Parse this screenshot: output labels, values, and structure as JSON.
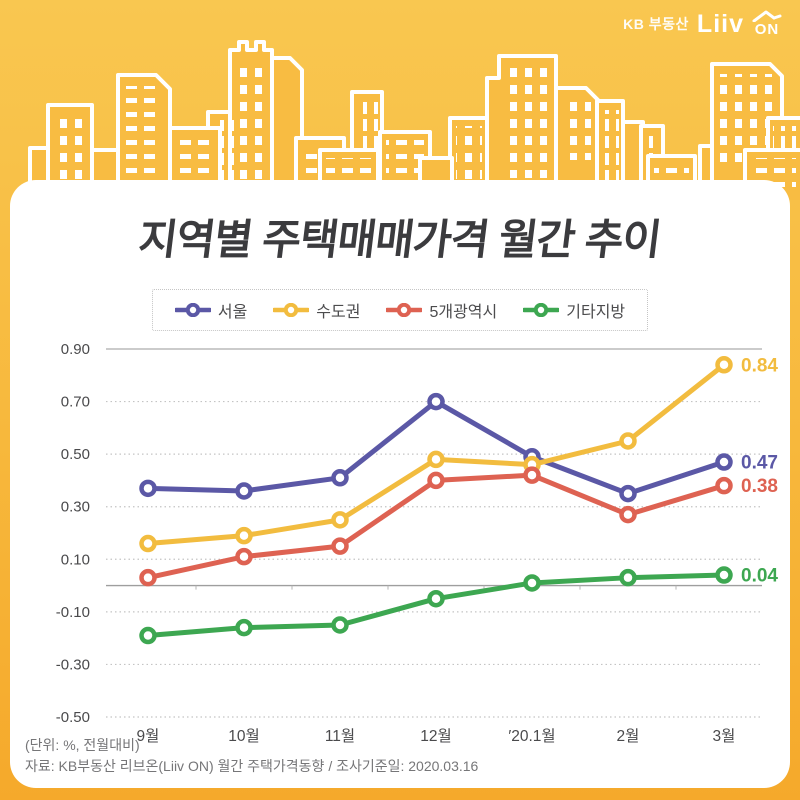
{
  "brand": {
    "kb": "KB 부동산",
    "liiv": "Liiv",
    "on": "ON"
  },
  "title": "지역별 주택매매가격 월간 추이",
  "footer": {
    "unit_note": "(단위: %, 전월대비)",
    "source_note": "자료: KB부동산 리브온(Liiv ON) 월간 주택가격동향 / 조사기준일: 2020.03.16"
  },
  "colors": {
    "background_top": "#F9C750",
    "background_bottom": "#F5A92B",
    "card": "#FFFFFF",
    "title_text": "#3B3B3E",
    "grid_dotted": "#C4C4C4",
    "grid_solid": "#9E9E9E",
    "axis_text": "#4A4A4C"
  },
  "chart_data": {
    "type": "line",
    "title": "지역별 주택매매가격 월간 추이",
    "xlabel": "",
    "ylabel": "(단위: %, 전월대비)",
    "categories": [
      "9월",
      "10월",
      "11월",
      "12월",
      "′20.1월",
      "2월",
      "3월"
    ],
    "series": [
      {
        "key": "seoul",
        "name": "서울",
        "color": "#5B58A6",
        "values": [
          0.37,
          0.36,
          0.41,
          0.7,
          0.49,
          0.35,
          0.47
        ],
        "end_label": "0.47"
      },
      {
        "key": "sudogwon",
        "name": "수도권",
        "color": "#F2BC3F",
        "values": [
          0.16,
          0.19,
          0.25,
          0.48,
          0.46,
          0.55,
          0.84
        ],
        "end_label": "0.84"
      },
      {
        "key": "gwangyeoksi",
        "name": "5개광역시",
        "color": "#DE6252",
        "values": [
          0.03,
          0.11,
          0.15,
          0.4,
          0.42,
          0.27,
          0.38
        ],
        "end_label": "0.38"
      },
      {
        "key": "gitajibang",
        "name": "기타지방",
        "color": "#3DA751",
        "values": [
          -0.19,
          -0.16,
          -0.15,
          -0.05,
          0.01,
          0.03,
          0.04
        ],
        "end_label": "0.04"
      }
    ],
    "y_ticks": [
      "0.90",
      "0.70",
      "0.50",
      "0.30",
      "0.10",
      "-0.10",
      "-0.30",
      "-0.50"
    ],
    "ylim": [
      -0.5,
      0.9
    ],
    "grid": true,
    "legend_position": "top"
  }
}
